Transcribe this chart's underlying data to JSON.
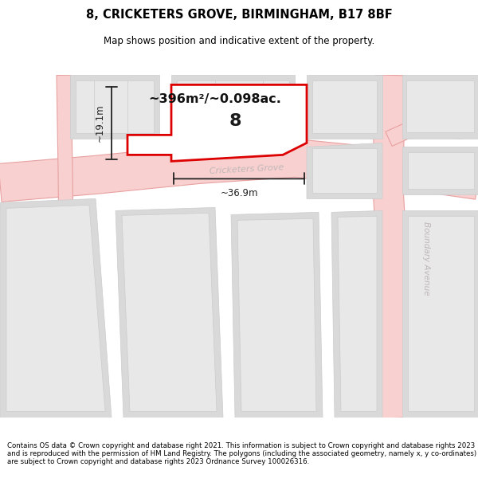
{
  "title": "8, CRICKETERS GROVE, BIRMINGHAM, B17 8BF",
  "subtitle": "Map shows position and indicative extent of the property.",
  "footer": "Contains OS data © Crown copyright and database right 2021. This information is subject to Crown copyright and database rights 2023 and is reproduced with the permission of HM Land Registry. The polygons (including the associated geometry, namely x, y co-ordinates) are subject to Crown copyright and database rights 2023 Ordnance Survey 100026316.",
  "background_color": "#ffffff",
  "road_fill": "#f9d0d0",
  "road_edge": "#e8a0a0",
  "building_fill": "#d9d9d9",
  "building_inner_fill": "#e8e8e8",
  "building_edge": "#cccccc",
  "highlight_fill": "#ffffff",
  "highlight_edge": "#dd0000",
  "highlight_lw": 2.0,
  "dim_color": "#222222",
  "street_label_color": "#c0b8b8",
  "area_label": "~396m²/~0.098ac.",
  "width_label": "~36.9m",
  "height_label": "~19.1m",
  "plot_number": "8",
  "street_name": "Cricketers Grove",
  "boundary_avenue": "Boundary Avenue",
  "map_bg": "#f5f5f5"
}
